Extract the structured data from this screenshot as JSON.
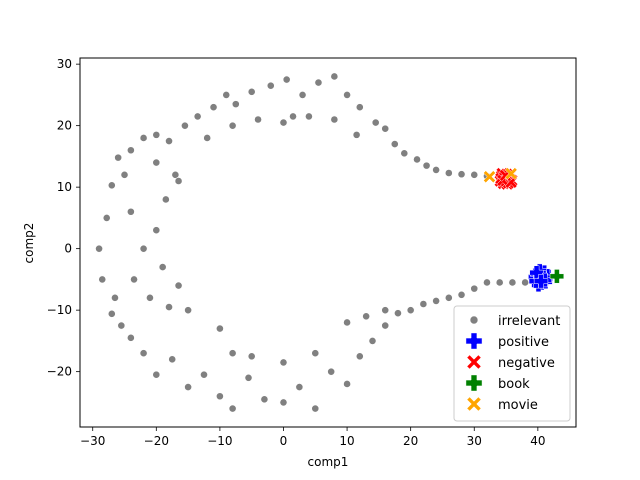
{
  "chart_data": {
    "type": "scatter",
    "xlabel": "comp1",
    "ylabel": "comp2",
    "xlim": [
      -32,
      46
    ],
    "ylim": [
      -29,
      31
    ],
    "xticks": [
      -30,
      -20,
      -10,
      0,
      10,
      20,
      30,
      40
    ],
    "yticks": [
      -20,
      -10,
      0,
      10,
      20,
      30
    ],
    "tick_labels_x": [
      "−30",
      "−20",
      "−10",
      "0",
      "10",
      "20",
      "30",
      "40"
    ],
    "tick_labels_y": [
      "−20",
      "−10",
      "0",
      "10",
      "20",
      "30"
    ],
    "legend_position": "lower right",
    "grid": false,
    "series": [
      {
        "name": "irrelevant",
        "marker": "circle",
        "color": "#808080",
        "description": "Approximately 900 points forming a C-shaped (horseshoe) band. The band spans x from about -29 to 38. The upper arm runs from about (-25, 12) through (-10, 24), peaks near (0, 27) and descends to a thin tail at about (32, 12). The lower arm runs from about (-25, -12) through (-10, -22), bottoms near (0, -25) and rises to a thin tail at about (38, -5.5). The left side closes through x ≈ -27 at y ≈ 0.",
        "points": [
          [
            -29.0,
            0.0
          ],
          [
            -28.5,
            -5.0
          ],
          [
            -27.8,
            5.0
          ],
          [
            -27.0,
            10.3
          ],
          [
            -27.0,
            -10.6
          ],
          [
            -26.0,
            14.8
          ],
          [
            -26.5,
            -8.0
          ],
          [
            -25.5,
            -12.5
          ],
          [
            -25.0,
            12.0
          ],
          [
            -24.0,
            16.0
          ],
          [
            -22.0,
            18.0
          ],
          [
            -20.0,
            18.5
          ],
          [
            -18.0,
            17.5
          ],
          [
            -15.5,
            20.0
          ],
          [
            -13.5,
            21.5
          ],
          [
            -11.0,
            23.0
          ],
          [
            -9.0,
            25.0
          ],
          [
            -7.5,
            23.5
          ],
          [
            -5.0,
            25.5
          ],
          [
            -2.0,
            26.5
          ],
          [
            0.5,
            27.5
          ],
          [
            1.5,
            21.5
          ],
          [
            3.0,
            25.0
          ],
          [
            5.5,
            27.0
          ],
          [
            8.0,
            28.0
          ],
          [
            10.0,
            25.0
          ],
          [
            12.0,
            23.0
          ],
          [
            14.5,
            20.5
          ],
          [
            16.0,
            19.5
          ],
          [
            17.5,
            17.0
          ],
          [
            19.0,
            15.5
          ],
          [
            21.0,
            14.5
          ],
          [
            22.5,
            13.5
          ],
          [
            24.0,
            12.8
          ],
          [
            26.0,
            12.3
          ],
          [
            28.0,
            12.1
          ],
          [
            30.0,
            12.0
          ],
          [
            32.0,
            11.8
          ],
          [
            -20.0,
            14.0
          ],
          [
            -17.0,
            12.0
          ],
          [
            -12.0,
            18.0
          ],
          [
            -8.0,
            20.0
          ],
          [
            -4.0,
            21.0
          ],
          [
            0.0,
            20.5
          ],
          [
            4.0,
            21.5
          ],
          [
            8.0,
            21.0
          ],
          [
            11.5,
            18.5
          ],
          [
            -24.0,
            -14.5
          ],
          [
            -22.0,
            -17.0
          ],
          [
            -20.0,
            -20.5
          ],
          [
            -17.5,
            -18.0
          ],
          [
            -15.0,
            -22.5
          ],
          [
            -12.5,
            -20.5
          ],
          [
            -10.0,
            -24.0
          ],
          [
            -8.0,
            -26.0
          ],
          [
            -5.5,
            -21.0
          ],
          [
            -3.0,
            -24.5
          ],
          [
            0.0,
            -25.0
          ],
          [
            2.5,
            -22.5
          ],
          [
            5.0,
            -26.0
          ],
          [
            7.5,
            -20.0
          ],
          [
            10.0,
            -22.0
          ],
          [
            12.0,
            -17.5
          ],
          [
            14.0,
            -15.0
          ],
          [
            16.0,
            -12.5
          ],
          [
            18.0,
            -10.5
          ],
          [
            20.0,
            -10.0
          ],
          [
            22.0,
            -9.0
          ],
          [
            24.0,
            -8.5
          ],
          [
            26.0,
            -8.0
          ],
          [
            28.0,
            -7.5
          ],
          [
            30.0,
            -6.5
          ],
          [
            32.0,
            -5.5
          ],
          [
            34.0,
            -5.5
          ],
          [
            36.0,
            -5.5
          ],
          [
            38.0,
            -5.5
          ],
          [
            -21.0,
            -8.0
          ],
          [
            -18.0,
            -9.5
          ],
          [
            -16.5,
            -6.0
          ],
          [
            -15.0,
            -10.0
          ],
          [
            -10.0,
            -13.0
          ],
          [
            -8.0,
            -17.0
          ],
          [
            -5.0,
            -17.5
          ],
          [
            0.0,
            -18.5
          ],
          [
            5.0,
            -17.0
          ],
          [
            10.0,
            -12.0
          ],
          [
            13.0,
            -11.0
          ],
          [
            16.0,
            -10.0
          ],
          [
            -19.0,
            -3.0
          ],
          [
            -20.0,
            3.0
          ],
          [
            -18.5,
            8.0
          ],
          [
            -16.5,
            11.0
          ],
          [
            -22.0,
            0.0
          ],
          [
            -24.0,
            6.0
          ],
          [
            -23.5,
            -5.0
          ]
        ]
      },
      {
        "name": "positive",
        "marker": "plus",
        "color": "#0000ff",
        "description": "A tight cluster of about 20 points centered near (40.5, -4.7).",
        "points": [
          [
            40.2,
            -4.0
          ],
          [
            40.8,
            -4.3
          ],
          [
            41.3,
            -4.9
          ],
          [
            40.0,
            -5.2
          ],
          [
            40.6,
            -5.6
          ],
          [
            39.6,
            -4.6
          ],
          [
            41.0,
            -3.8
          ],
          [
            40.4,
            -4.9
          ],
          [
            39.9,
            -4.1
          ],
          [
            41.5,
            -4.4
          ],
          [
            40.1,
            -5.9
          ],
          [
            40.7,
            -5.0
          ],
          [
            39.7,
            -5.3
          ],
          [
            41.2,
            -5.4
          ],
          [
            40.5,
            -4.5
          ],
          [
            40.3,
            -3.6
          ],
          [
            40.9,
            -4.7
          ],
          [
            39.8,
            -3.9
          ],
          [
            41.1,
            -5.1
          ],
          [
            40.5,
            -5.3
          ]
        ]
      },
      {
        "name": "negative",
        "marker": "x",
        "color": "#ff0000",
        "description": "A tight cluster of about 20 points centered near (35, 11.2).",
        "points": [
          [
            34.3,
            11.8
          ],
          [
            34.8,
            11.2
          ],
          [
            35.3,
            11.6
          ],
          [
            35.7,
            10.9
          ],
          [
            34.6,
            10.6
          ],
          [
            35.1,
            12.1
          ],
          [
            34.1,
            11.0
          ],
          [
            35.5,
            11.4
          ],
          [
            34.9,
            10.8
          ],
          [
            35.9,
            11.1
          ],
          [
            34.4,
            12.2
          ],
          [
            35.2,
            10.5
          ],
          [
            34.7,
            11.5
          ],
          [
            35.6,
            11.9
          ],
          [
            34.2,
            11.4
          ],
          [
            35.0,
            11.0
          ],
          [
            35.4,
            10.7
          ],
          [
            34.5,
            11.1
          ],
          [
            35.8,
            10.8
          ],
          [
            34.9,
            11.9
          ]
        ]
      },
      {
        "name": "book",
        "marker": "plus",
        "color": "#008000",
        "description": "Single point near (43.0, -4.5).",
        "points": [
          [
            43.0,
            -4.5
          ]
        ]
      },
      {
        "name": "movie",
        "marker": "x",
        "color": "#ffa500",
        "description": "Two points near (32.4, 11.7) and (35.8, 12.2).",
        "points": [
          [
            32.4,
            11.7
          ],
          [
            35.8,
            12.2
          ]
        ]
      }
    ]
  }
}
